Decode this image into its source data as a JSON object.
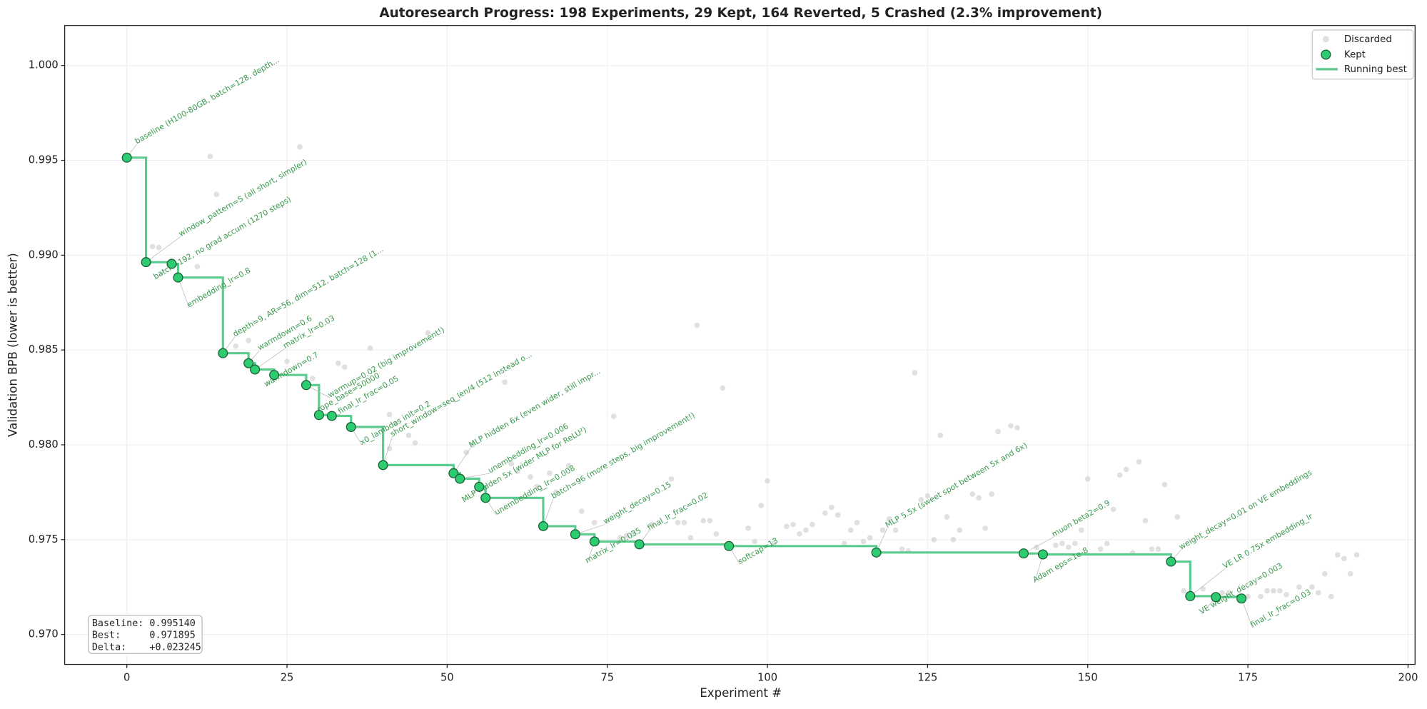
{
  "chart_data": {
    "type": "scatter",
    "title": "Autoresearch Progress: 198 Experiments, 29 Kept, 164 Reverted, 5 Crashed  (2.3% improvement)",
    "x_label": "Experiment #",
    "y_label": "Validation BPB (lower is better)",
    "xlim": [
      -9.7,
      201.1
    ],
    "ylim": [
      0.96842,
      1.00211
    ],
    "xticks": [
      0,
      25,
      50,
      75,
      100,
      125,
      150,
      175,
      200
    ],
    "yticks": [
      {
        "value": 0.97,
        "label": "0.970"
      },
      {
        "value": 0.975,
        "label": "0.975"
      },
      {
        "value": 0.98,
        "label": "0.980"
      },
      {
        "value": 0.985,
        "label": "0.985"
      },
      {
        "value": 0.99,
        "label": "0.990"
      },
      {
        "value": 0.995,
        "label": "0.995"
      },
      {
        "value": 1.0,
        "label": "1.000"
      }
    ],
    "grid": true,
    "legend": "upper right",
    "series": [
      {
        "name": "Discarded",
        "color": "#cccccc",
        "x": [
          4,
          5,
          13,
          14,
          27,
          11,
          17,
          19,
          25,
          29,
          33,
          34,
          38,
          47,
          41,
          42,
          41,
          44,
          45,
          54,
          53,
          59,
          76,
          93,
          89,
          60,
          61,
          63,
          64,
          66,
          69,
          67,
          71,
          73,
          77,
          78,
          79,
          82,
          85,
          86,
          87,
          88,
          90,
          91,
          92,
          97,
          98,
          99,
          100,
          101,
          103,
          104,
          105,
          106,
          107,
          109,
          110,
          111,
          112,
          113,
          114,
          115,
          116,
          118,
          119,
          120,
          121,
          122,
          123,
          124,
          125,
          126,
          127,
          128,
          129,
          130,
          132,
          133,
          134,
          135,
          136,
          138,
          139,
          142,
          145,
          146,
          147,
          148,
          149,
          150,
          152,
          153,
          154,
          155,
          156,
          157,
          158,
          159,
          160,
          161,
          162,
          164,
          165,
          168,
          171,
          172,
          175,
          177,
          178,
          179,
          180,
          181,
          183,
          185,
          186,
          187,
          188,
          189,
          190,
          191,
          192
        ],
        "values": [
          0.99045,
          0.9904,
          0.9952,
          0.9932,
          0.9957,
          0.9894,
          0.9852,
          0.9855,
          0.9844,
          0.9835,
          0.9843,
          0.9841,
          0.9851,
          0.9859,
          0.9816,
          0.9811,
          0.9798,
          0.9805,
          0.9801,
          0.98,
          0.9796,
          0.9833,
          0.9815,
          0.983,
          0.9863,
          0.979,
          0.9786,
          0.9783,
          0.9778,
          0.9785,
          0.9789,
          0.9775,
          0.9765,
          0.9759,
          0.9751,
          0.9752,
          0.9753,
          0.9758,
          0.9782,
          0.9759,
          0.9759,
          0.9751,
          0.976,
          0.976,
          0.9753,
          0.9756,
          0.9749,
          0.9768,
          0.9781,
          0.9748,
          0.9757,
          0.9758,
          0.9753,
          0.9755,
          0.9758,
          0.9764,
          0.9767,
          0.9763,
          0.9748,
          0.9755,
          0.9759,
          0.9749,
          0.9751,
          0.9755,
          0.9761,
          0.9755,
          0.9745,
          0.9744,
          0.9838,
          0.9771,
          0.9773,
          0.975,
          0.9805,
          0.9762,
          0.975,
          0.9755,
          0.9774,
          0.9772,
          0.9756,
          0.9774,
          0.9807,
          0.981,
          0.9809,
          0.9746,
          0.9747,
          0.9748,
          0.9746,
          0.9748,
          0.9755,
          0.9782,
          0.9745,
          0.9748,
          0.9766,
          0.9784,
          0.9787,
          0.9743,
          0.9791,
          0.976,
          0.9745,
          0.9745,
          0.9779,
          0.9762,
          0.9723,
          0.9724,
          0.9722,
          0.9722,
          0.972,
          0.972,
          0.9723,
          0.9723,
          0.9723,
          0.9721,
          0.9725,
          0.9725,
          0.9722,
          0.9732,
          0.972,
          0.9742,
          0.974,
          0.9732,
          0.9742
        ]
      },
      {
        "name": "Kept",
        "color": "#2ecc71",
        "x": [
          0,
          3,
          7,
          8,
          15,
          19,
          20,
          23,
          28,
          30,
          32,
          35,
          40,
          51,
          52,
          55,
          56,
          65,
          70,
          73,
          80,
          94,
          117,
          140,
          143,
          163,
          166,
          170,
          174
        ],
        "values": [
          0.99514,
          0.98963,
          0.98954,
          0.98882,
          0.98483,
          0.9843,
          0.98397,
          0.98368,
          0.98315,
          0.98157,
          0.98152,
          0.98094,
          0.97893,
          0.9785,
          0.97821,
          0.97778,
          0.9772,
          0.97571,
          0.97528,
          0.9749,
          0.97475,
          0.97466,
          0.97432,
          0.97427,
          0.97422,
          0.97384,
          0.97202,
          0.97197,
          0.971895
        ],
        "labels": [
          "baseline (H100-80GB, batch=128, depth...",
          "window_pattern=S (all short, simpler)",
          "batch=192, no grad accum (1270 steps)",
          "embedding_lr=0.8",
          "depth=9, AR=56, dim=512, batch=128 (1...",
          "warmdown=0.6",
          "matrix_lr=0.03",
          "warmdown=0.7",
          "warmup=0.02 (big improvement!)",
          "rope_base=50000",
          "final_lr_frac=0.05",
          "x0_lambdas init=0.2",
          "short_window=seq_len/4 (512 instead o...",
          "MLP hidden 6x (even wider, still impr...",
          "unembedding_lr=0.006",
          "MLP hidden 5x (wider MLP for ReLU²)",
          "unembedding_lr=0.008",
          "batch=96 (more steps, big improvement!)",
          "weight_decay=0.15",
          "matrix_lr=0.035",
          "final_lr_frac=0.02",
          "softcap=13",
          "MLP 5.5x (sweet spot between 5x and 6x)",
          "muon beta2=0.9",
          "Adam eps=1e-8",
          "weight_decay=0.01 on VE embeddings",
          "VE LR 0.75x embedding_lr",
          "VE weight_decay=0.003",
          "final_lr_frac=0.03"
        ]
      },
      {
        "name": "Running best",
        "color": "#5ccb8e"
      }
    ],
    "stats_box": [
      "Baseline: 0.995140",
      "Best:     0.971895",
      "Delta:    +0.023245"
    ]
  }
}
